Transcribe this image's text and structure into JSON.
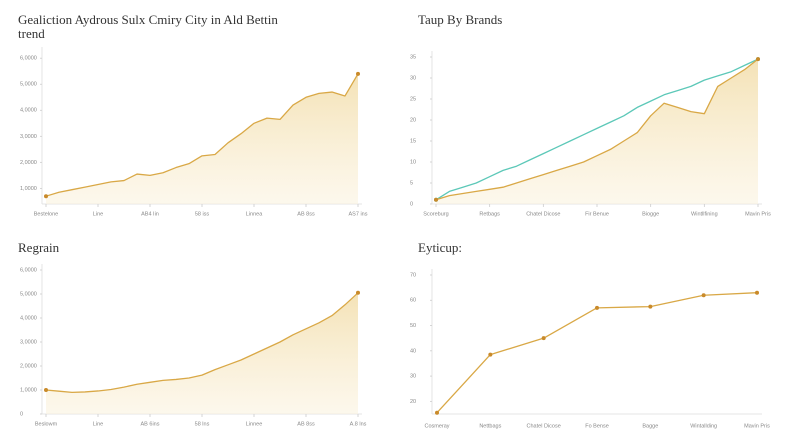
{
  "chart_data": [
    {
      "type": "area",
      "title": [
        "Gealiction Aydrous Sulx Cmiry City in Ald Bettin",
        "trend"
      ],
      "x": [
        0,
        1,
        2,
        3,
        4,
        5,
        6,
        7,
        8,
        9,
        10,
        11,
        12,
        13,
        14,
        15,
        16,
        17,
        18,
        19,
        20,
        21,
        22,
        23,
        24
      ],
      "values": [
        7000,
        8500,
        9500,
        10500,
        11500,
        12500,
        13000,
        15500,
        15000,
        16000,
        18000,
        19500,
        22500,
        23000,
        27500,
        31000,
        35000,
        37000,
        36500,
        42000,
        45000,
        46500,
        47000,
        45500,
        54000
      ],
      "color": "#d9a846",
      "xlim": [
        0,
        24
      ],
      "xticks": [
        {
          "value": 0,
          "label": "Bestelone"
        },
        {
          "value": 4,
          "label": "Line"
        },
        {
          "value": 8,
          "label": "AB4 Iin"
        },
        {
          "value": 12,
          "label": "58 iss"
        },
        {
          "value": 16,
          "label": "Linnea"
        },
        {
          "value": 20,
          "label": "AB 8ss"
        },
        {
          "value": 24,
          "label": "AS7 ins"
        }
      ],
      "ylim": [
        4000,
        62000
      ],
      "yticks": [
        {
          "value": 10000,
          "label": "1,0000"
        },
        {
          "value": 20000,
          "label": "2,0000"
        },
        {
          "value": 30000,
          "label": "3,0000"
        },
        {
          "value": 40000,
          "label": "4,0000"
        },
        {
          "value": 50000,
          "label": "5,0000"
        },
        {
          "value": 60000,
          "label": "6,0000"
        }
      ]
    },
    {
      "type": "line",
      "title": [
        "Taup By Brands"
      ],
      "x": [
        0,
        1,
        2,
        3,
        4,
        5,
        6,
        7,
        8,
        9,
        10,
        11,
        12,
        13,
        14,
        15,
        16,
        17,
        18,
        19,
        20,
        21,
        22,
        23,
        24
      ],
      "series": [
        {
          "color": "#5cc8b8",
          "area": false,
          "values": [
            1,
            3,
            4,
            5,
            6.5,
            8,
            9,
            10.5,
            12,
            13.5,
            15,
            16.5,
            18,
            19.5,
            21,
            23,
            24.5,
            26,
            27,
            28,
            29.5,
            30.5,
            31.5,
            33,
            34.5
          ]
        },
        {
          "color": "#d9a846",
          "area": true,
          "values": [
            1,
            2,
            2.5,
            3,
            3.5,
            4,
            5,
            6,
            7,
            8,
            9,
            10,
            11.5,
            13,
            15,
            17,
            21,
            24,
            23,
            22,
            21.5,
            28,
            30,
            32,
            34.5
          ]
        }
      ],
      "xlim": [
        0,
        24
      ],
      "xticks": [
        {
          "value": 0,
          "label": "Scoreburg"
        },
        {
          "value": 4,
          "label": "Retbags"
        },
        {
          "value": 8,
          "label": "Chatel Dicose"
        },
        {
          "value": 12,
          "label": "Fir Benue"
        },
        {
          "value": 16,
          "label": "Biogge"
        },
        {
          "value": 20,
          "label": "Wintllfining"
        },
        {
          "value": 24,
          "label": "Mavin Pris"
        }
      ],
      "ylim": [
        0,
        35
      ],
      "yticks": [
        0,
        5,
        10,
        15,
        20,
        25,
        30,
        35
      ]
    },
    {
      "type": "area",
      "title": [
        "Regrain"
      ],
      "x": [
        0,
        1,
        2,
        3,
        4,
        5,
        6,
        7,
        8,
        9,
        10,
        11,
        12,
        13,
        14,
        15,
        16,
        17,
        18,
        19,
        20,
        21,
        22,
        23,
        24
      ],
      "values": [
        10000,
        9500,
        9000,
        9200,
        9600,
        10200,
        11200,
        12400,
        13200,
        14000,
        14400,
        15000,
        16200,
        18500,
        20500,
        22500,
        25000,
        27500,
        30000,
        33000,
        35500,
        38000,
        41000,
        45500,
        50500
      ],
      "color": "#d9a846",
      "xlim": [
        0,
        24
      ],
      "xticks": [
        {
          "value": 0,
          "label": "Beslowm"
        },
        {
          "value": 4,
          "label": "Line"
        },
        {
          "value": 8,
          "label": "AB 6ins"
        },
        {
          "value": 12,
          "label": "58 lns"
        },
        {
          "value": 16,
          "label": "Linnee"
        },
        {
          "value": 20,
          "label": "AB 8ss"
        },
        {
          "value": 24,
          "label": "A.8 lns"
        }
      ],
      "ylim": [
        0,
        60000
      ],
      "yticks": [
        0,
        {
          "value": 10000,
          "label": "1,0000"
        },
        {
          "value": 20000,
          "label": "2,0000"
        },
        {
          "value": 30000,
          "label": "3,0000"
        },
        {
          "value": 40000,
          "label": "4,0000"
        },
        {
          "value": 50000,
          "label": "5,0000"
        },
        {
          "value": 60000,
          "label": "6,0000"
        }
      ]
    },
    {
      "type": "line",
      "title": [
        "Eyticup:"
      ],
      "categories": [
        "Cosmeray",
        "Nettbags",
        "Chatel Dicose",
        "Fo Bense",
        "Bagge",
        "Wintallding",
        "Mavin Pris"
      ],
      "series": [
        {
          "color": "#d9a846",
          "area": false,
          "values": [
            15.5,
            38.5,
            45,
            57,
            57.5,
            62,
            63
          ]
        }
      ],
      "markers": true,
      "ylim": [
        15,
        70
      ],
      "yticks": [
        20,
        30,
        40,
        50,
        60,
        70
      ]
    }
  ]
}
